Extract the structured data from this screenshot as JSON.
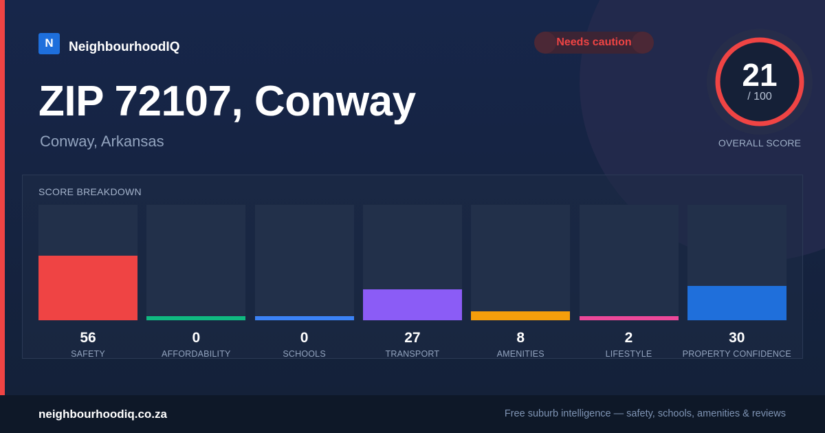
{
  "brand": {
    "logo_letter": "N",
    "name": "NeighbourhoodIQ"
  },
  "badge": {
    "label": "Needs caution",
    "color": "#ef4444"
  },
  "location": {
    "title": "ZIP 72107, Conway",
    "subtitle": "Conway, Arkansas"
  },
  "overall_score": {
    "value": 21,
    "max_label": "/ 100",
    "label": "OVERALL SCORE",
    "max": 100,
    "color": "#ef4444"
  },
  "breakdown": {
    "title": "SCORE BREAKDOWN",
    "max": 100,
    "items": [
      {
        "label": "SAFETY",
        "value": 56,
        "color": "#ef4444"
      },
      {
        "label": "AFFORDABILITY",
        "value": 0,
        "color": "#10b981"
      },
      {
        "label": "SCHOOLS",
        "value": 0,
        "color": "#3b82f6"
      },
      {
        "label": "TRANSPORT",
        "value": 27,
        "color": "#8b5cf6"
      },
      {
        "label": "AMENITIES",
        "value": 8,
        "color": "#f59e0b"
      },
      {
        "label": "LIFESTYLE",
        "value": 2,
        "color": "#ec4899"
      },
      {
        "label": "PROPERTY CONFIDENCE",
        "value": 30,
        "color": "#1f6fdb"
      }
    ]
  },
  "footer": {
    "domain": "neighbourhoodiq.co.za",
    "tagline": "Free suburb intelligence — safety, schools, amenities & reviews"
  }
}
